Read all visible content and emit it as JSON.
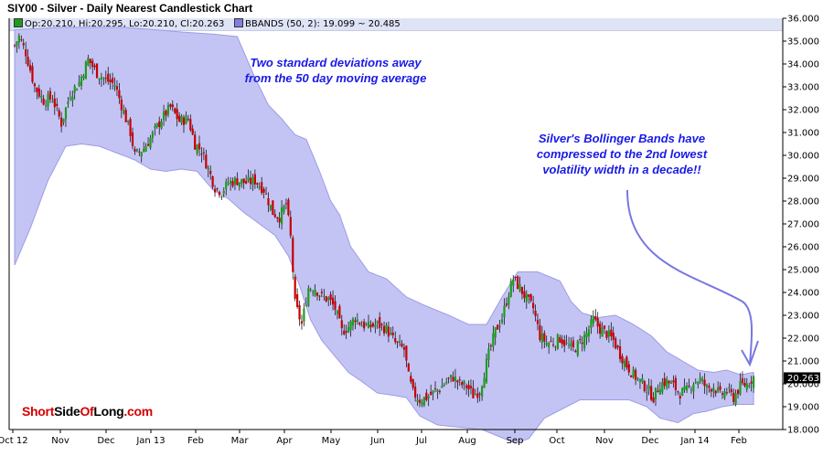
{
  "chart_data": {
    "type": "candlestick",
    "title": "SIY00 - Silver - Daily Nearest Candlestick Chart",
    "legend": {
      "ohlc": "Op:20.210, Hi:20.295, Lo:20.210, Cl:20.263",
      "bbands": "BBANDS (50, 2): 19.099 ~ 20.485"
    },
    "last_price_label": "20.263",
    "ylim": [
      18.0,
      36.0
    ],
    "y_ticks": [
      "18.000",
      "19.000",
      "20.000",
      "21.000",
      "22.000",
      "23.000",
      "24.000",
      "25.000",
      "26.000",
      "27.000",
      "28.000",
      "29.000",
      "30.000",
      "31.000",
      "32.000",
      "33.000",
      "34.000",
      "35.000",
      "36.000"
    ],
    "x_ticks": [
      "Oct 12",
      "Nov",
      "Dec",
      "Jan 13",
      "Feb",
      "Mar",
      "Apr",
      "May",
      "Jun",
      "Jul",
      "Aug",
      "Sep",
      "Oct",
      "Nov",
      "Dec",
      "Jan 14",
      "Feb"
    ],
    "grid": false,
    "price_path": [
      [
        0,
        34.8
      ],
      [
        4,
        35.2
      ],
      [
        10,
        34.5
      ],
      [
        18,
        33.0
      ],
      [
        26,
        32.4
      ],
      [
        34,
        32.5
      ],
      [
        42,
        31.4
      ],
      [
        50,
        32.7
      ],
      [
        58,
        33.2
      ],
      [
        66,
        34.2
      ],
      [
        74,
        33.6
      ],
      [
        82,
        33.3
      ],
      [
        90,
        33.1
      ],
      [
        98,
        31.9
      ],
      [
        104,
        31.0
      ],
      [
        108,
        30.0
      ],
      [
        116,
        30.3
      ],
      [
        124,
        30.9
      ],
      [
        132,
        31.6
      ],
      [
        140,
        32.1
      ],
      [
        148,
        31.5
      ],
      [
        156,
        31.6
      ],
      [
        162,
        30.5
      ],
      [
        168,
        30.2
      ],
      [
        174,
        29.4
      ],
      [
        180,
        28.6
      ],
      [
        186,
        28.4
      ],
      [
        192,
        28.8
      ],
      [
        200,
        28.9
      ],
      [
        208,
        28.8
      ],
      [
        216,
        28.9
      ],
      [
        224,
        28.5
      ],
      [
        232,
        27.5
      ],
      [
        238,
        27.3
      ],
      [
        244,
        27.9
      ],
      [
        248,
        26.4
      ],
      [
        252,
        23.5
      ],
      [
        258,
        22.6
      ],
      [
        264,
        24.2
      ],
      [
        270,
        24.2
      ],
      [
        276,
        23.8
      ],
      [
        282,
        23.7
      ],
      [
        288,
        23.3
      ],
      [
        294,
        22.3
      ],
      [
        300,
        22.5
      ],
      [
        306,
        22.9
      ],
      [
        312,
        22.6
      ],
      [
        318,
        22.5
      ],
      [
        326,
        22.6
      ],
      [
        334,
        22.4
      ],
      [
        342,
        21.8
      ],
      [
        350,
        21.5
      ],
      [
        354,
        20.3
      ],
      [
        358,
        19.6
      ],
      [
        364,
        19.3
      ],
      [
        370,
        19.4
      ],
      [
        376,
        19.6
      ],
      [
        382,
        19.8
      ],
      [
        388,
        20.1
      ],
      [
        394,
        20.3
      ],
      [
        400,
        20.0
      ],
      [
        406,
        19.9
      ],
      [
        412,
        19.5
      ],
      [
        418,
        19.7
      ],
      [
        426,
        21.3
      ],
      [
        432,
        22.3
      ],
      [
        438,
        22.9
      ],
      [
        444,
        24.0
      ],
      [
        448,
        24.6
      ],
      [
        454,
        24.2
      ],
      [
        460,
        23.7
      ],
      [
        466,
        23.3
      ],
      [
        472,
        22.1
      ],
      [
        478,
        21.8
      ],
      [
        484,
        21.8
      ],
      [
        490,
        22.0
      ],
      [
        496,
        21.7
      ],
      [
        502,
        21.5
      ],
      [
        508,
        21.8
      ],
      [
        514,
        22.2
      ],
      [
        520,
        22.8
      ],
      [
        526,
        22.4
      ],
      [
        532,
        22.2
      ],
      [
        538,
        21.9
      ],
      [
        544,
        21.3
      ],
      [
        550,
        20.8
      ],
      [
        556,
        20.4
      ],
      [
        562,
        20.1
      ],
      [
        568,
        19.8
      ],
      [
        574,
        19.4
      ],
      [
        580,
        20.0
      ],
      [
        586,
        20.1
      ],
      [
        592,
        19.9
      ],
      [
        598,
        19.6
      ],
      [
        604,
        19.7
      ],
      [
        610,
        20.1
      ],
      [
        616,
        20.2
      ],
      [
        622,
        19.8
      ],
      [
        628,
        19.9
      ],
      [
        634,
        19.5
      ],
      [
        640,
        19.7
      ],
      [
        646,
        19.4
      ],
      [
        652,
        19.9
      ],
      [
        658,
        20.0
      ],
      [
        664,
        20.3
      ]
    ],
    "bb_upper_path": [
      [
        0,
        35.5
      ],
      [
        40,
        35.6
      ],
      [
        100,
        35.6
      ],
      [
        150,
        35.4
      ],
      [
        180,
        35.3
      ],
      [
        200,
        35.2
      ],
      [
        215,
        33.5
      ],
      [
        228,
        32.2
      ],
      [
        240,
        31.6
      ],
      [
        252,
        30.9
      ],
      [
        262,
        30.7
      ],
      [
        274,
        29.3
      ],
      [
        284,
        28.0
      ],
      [
        292,
        27.4
      ],
      [
        302,
        26.0
      ],
      [
        318,
        24.9
      ],
      [
        334,
        24.6
      ],
      [
        352,
        23.8
      ],
      [
        370,
        23.4
      ],
      [
        390,
        23.0
      ],
      [
        408,
        22.6
      ],
      [
        424,
        22.6
      ],
      [
        438,
        23.8
      ],
      [
        452,
        24.9
      ],
      [
        470,
        24.9
      ],
      [
        490,
        24.5
      ],
      [
        500,
        23.6
      ],
      [
        510,
        23.1
      ],
      [
        524,
        22.9
      ],
      [
        540,
        23.0
      ],
      [
        556,
        22.6
      ],
      [
        572,
        22.1
      ],
      [
        586,
        21.4
      ],
      [
        600,
        21.0
      ],
      [
        614,
        20.6
      ],
      [
        628,
        20.5
      ],
      [
        640,
        20.6
      ],
      [
        652,
        20.4
      ],
      [
        664,
        20.5
      ]
    ],
    "bb_lower_path": [
      [
        0,
        25.2
      ],
      [
        14,
        26.8
      ],
      [
        30,
        28.9
      ],
      [
        46,
        30.4
      ],
      [
        60,
        30.5
      ],
      [
        76,
        30.4
      ],
      [
        92,
        30.1
      ],
      [
        108,
        29.8
      ],
      [
        122,
        29.4
      ],
      [
        136,
        29.3
      ],
      [
        150,
        29.4
      ],
      [
        164,
        29.3
      ],
      [
        178,
        28.5
      ],
      [
        192,
        28.1
      ],
      [
        206,
        27.5
      ],
      [
        220,
        27.0
      ],
      [
        234,
        26.5
      ],
      [
        246,
        25.6
      ],
      [
        256,
        24.3
      ],
      [
        266,
        22.8
      ],
      [
        276,
        21.9
      ],
      [
        288,
        21.2
      ],
      [
        300,
        20.5
      ],
      [
        312,
        20.1
      ],
      [
        326,
        19.6
      ],
      [
        340,
        19.5
      ],
      [
        352,
        19.4
      ],
      [
        364,
        18.6
      ],
      [
        380,
        18.2
      ],
      [
        400,
        18.1
      ],
      [
        420,
        18.0
      ],
      [
        440,
        17.6
      ],
      [
        450,
        17.4
      ],
      [
        462,
        17.6
      ],
      [
        476,
        18.5
      ],
      [
        492,
        18.9
      ],
      [
        508,
        19.3
      ],
      [
        520,
        19.3
      ],
      [
        536,
        19.3
      ],
      [
        552,
        19.3
      ],
      [
        568,
        19.0
      ],
      [
        580,
        18.5
      ],
      [
        596,
        18.3
      ],
      [
        610,
        18.7
      ],
      [
        622,
        18.8
      ],
      [
        636,
        19.0
      ],
      [
        650,
        19.1
      ],
      [
        664,
        19.1
      ]
    ],
    "annotations": [
      "Two standard deviations away",
      "from the 50 day moving average",
      "Silver's Bollinger Bands have",
      "compressed to the 2nd lowest",
      "volatility width in a decade!!"
    ],
    "colors": {
      "band_fill": "#c4c4f4",
      "band_edge": "#9c9ce6",
      "up_candle": "#1e9c1e",
      "down_candle": "#c80000",
      "wick": "#000000",
      "annotation_text": "#1a1ae6",
      "arrow": "#7878e0",
      "last_price_box": "#000000",
      "axis": "#000000"
    }
  },
  "brand": {
    "part1": "Short",
    "part2": "Side",
    "part3": "Of",
    "part4": "Long",
    "part5": ".com"
  }
}
